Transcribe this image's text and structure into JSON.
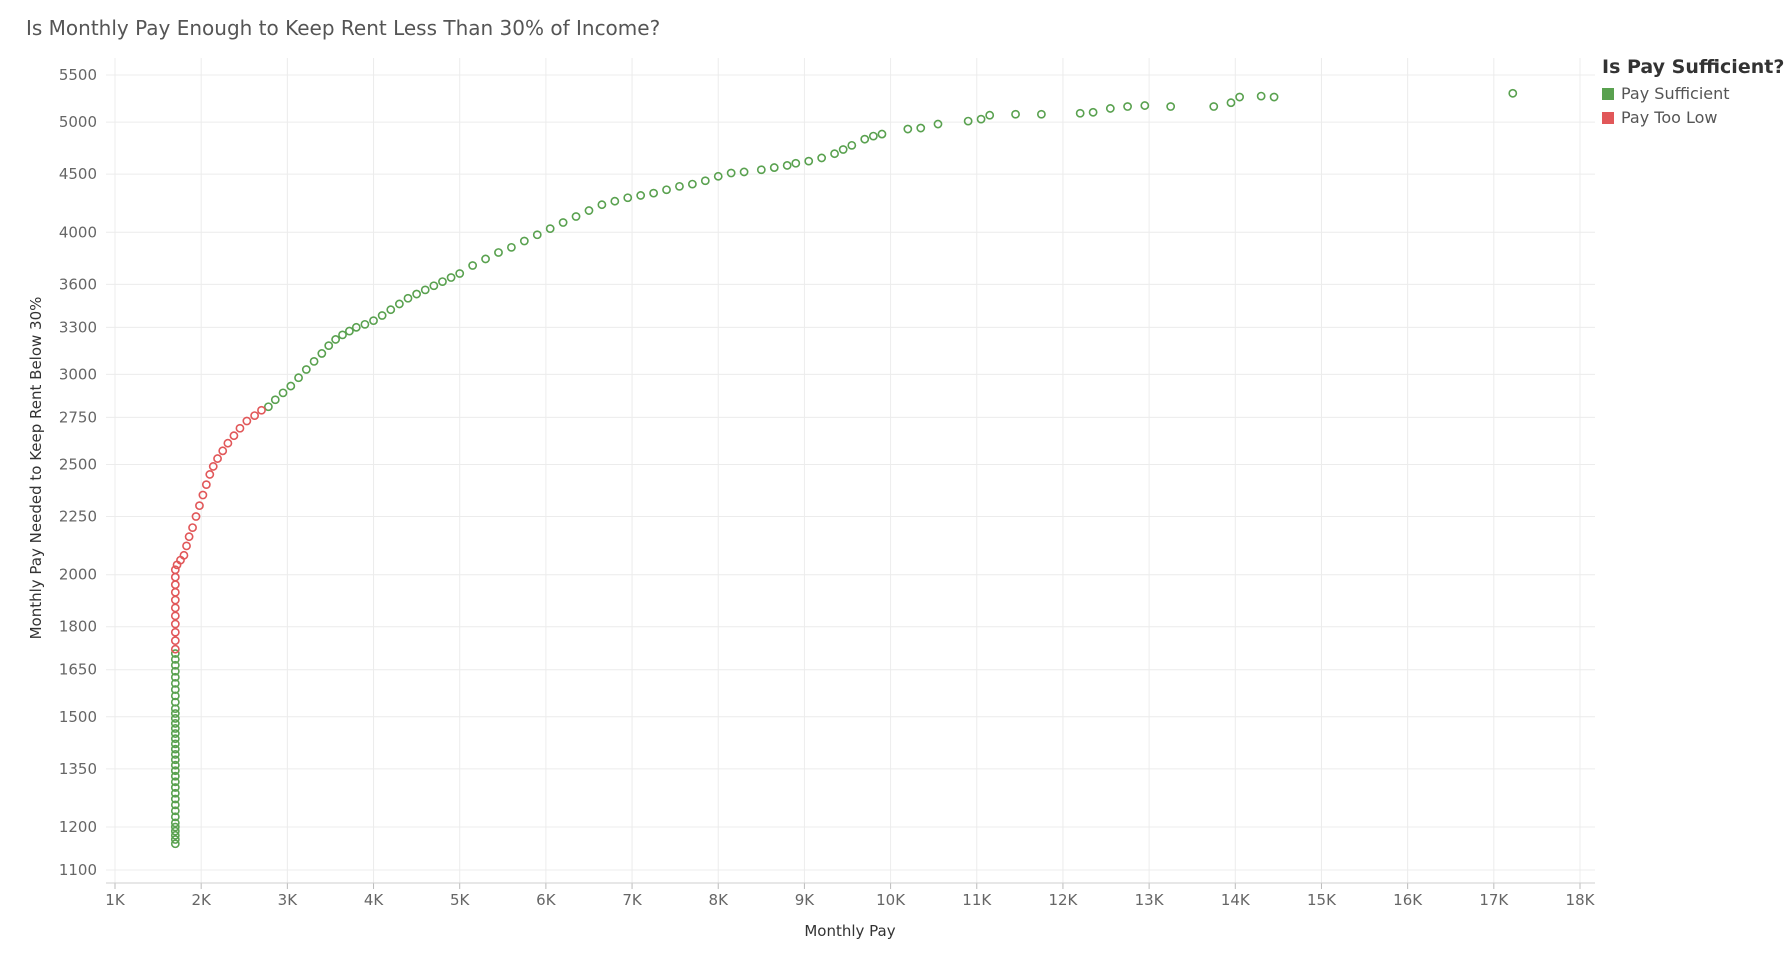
{
  "chart_data": {
    "type": "scatter",
    "title": "Is Monthly Pay Enough to Keep Rent Less Than 30% of Income?",
    "xlabel": "Monthly Pay",
    "ylabel": "Monthly Pay Needed to Keep Rent Below 30%",
    "y_scale": "log",
    "xlim": [
      1000,
      18000
    ],
    "ylim": [
      1100,
      5500
    ],
    "x_ticks": [
      1000,
      2000,
      3000,
      4000,
      5000,
      6000,
      7000,
      8000,
      9000,
      10000,
      11000,
      12000,
      13000,
      14000,
      15000,
      16000,
      17000,
      18000
    ],
    "x_tick_labels": [
      "1K",
      "2K",
      "3K",
      "4K",
      "5K",
      "6K",
      "7K",
      "8K",
      "9K",
      "10K",
      "11K",
      "12K",
      "13K",
      "14K",
      "15K",
      "16K",
      "17K",
      "18K"
    ],
    "y_ticks": [
      1100,
      1200,
      1350,
      1500,
      1650,
      1800,
      2000,
      2250,
      2500,
      2750,
      3000,
      3300,
      3600,
      4000,
      4500,
      5000,
      5500
    ],
    "y_tick_labels": [
      "1100",
      "1200",
      "1350",
      "1500",
      "1650",
      "1800",
      "2000",
      "2250",
      "2500",
      "2750",
      "3000",
      "3300",
      "3600",
      "4000",
      "4500",
      "5000",
      "5500"
    ],
    "grid": true,
    "legend": {
      "title": "Is Pay Sufficient?",
      "position": "top-right",
      "entries": [
        {
          "label": "Pay Sufficient",
          "color": "#59a14f"
        },
        {
          "label": "Pay Too Low",
          "color": "#e15759"
        }
      ]
    },
    "series": [
      {
        "name": "Pay Too Low",
        "color": "#e15759",
        "points": [
          [
            1700,
            1720
          ],
          [
            1700,
            1750
          ],
          [
            1700,
            1780
          ],
          [
            1700,
            1810
          ],
          [
            1700,
            1840
          ],
          [
            1700,
            1870
          ],
          [
            1700,
            1900
          ],
          [
            1700,
            1930
          ],
          [
            1700,
            1960
          ],
          [
            1700,
            1990
          ],
          [
            1700,
            2020
          ],
          [
            1720,
            2040
          ],
          [
            1760,
            2060
          ],
          [
            1800,
            2080
          ],
          [
            1830,
            2120
          ],
          [
            1860,
            2160
          ],
          [
            1900,
            2200
          ],
          [
            1940,
            2250
          ],
          [
            1980,
            2300
          ],
          [
            2020,
            2350
          ],
          [
            2060,
            2400
          ],
          [
            2100,
            2450
          ],
          [
            2140,
            2490
          ],
          [
            2190,
            2530
          ],
          [
            2250,
            2570
          ],
          [
            2310,
            2610
          ],
          [
            2380,
            2650
          ],
          [
            2450,
            2690
          ],
          [
            2530,
            2730
          ],
          [
            2620,
            2760
          ],
          [
            2700,
            2790
          ]
        ]
      },
      {
        "name": "Pay Sufficient",
        "color": "#59a14f",
        "points": [
          [
            1700,
            1160
          ],
          [
            1700,
            1170
          ],
          [
            1700,
            1180
          ],
          [
            1700,
            1190
          ],
          [
            1700,
            1200
          ],
          [
            1700,
            1210
          ],
          [
            1700,
            1225
          ],
          [
            1700,
            1240
          ],
          [
            1700,
            1255
          ],
          [
            1700,
            1270
          ],
          [
            1700,
            1285
          ],
          [
            1700,
            1300
          ],
          [
            1700,
            1315
          ],
          [
            1700,
            1330
          ],
          [
            1700,
            1345
          ],
          [
            1700,
            1360
          ],
          [
            1700,
            1375
          ],
          [
            1700,
            1390
          ],
          [
            1700,
            1405
          ],
          [
            1700,
            1420
          ],
          [
            1700,
            1435
          ],
          [
            1700,
            1450
          ],
          [
            1700,
            1465
          ],
          [
            1700,
            1480
          ],
          [
            1700,
            1495
          ],
          [
            1700,
            1510
          ],
          [
            1700,
            1525
          ],
          [
            1700,
            1545
          ],
          [
            1700,
            1565
          ],
          [
            1700,
            1585
          ],
          [
            1700,
            1605
          ],
          [
            1700,
            1625
          ],
          [
            1700,
            1645
          ],
          [
            1700,
            1665
          ],
          [
            1700,
            1685
          ],
          [
            1700,
            1705
          ],
          [
            2780,
            2810
          ],
          [
            2860,
            2850
          ],
          [
            2950,
            2890
          ],
          [
            3040,
            2930
          ],
          [
            3130,
            2980
          ],
          [
            3220,
            3030
          ],
          [
            3310,
            3080
          ],
          [
            3400,
            3130
          ],
          [
            3480,
            3180
          ],
          [
            3560,
            3220
          ],
          [
            3640,
            3250
          ],
          [
            3720,
            3275
          ],
          [
            3800,
            3300
          ],
          [
            3900,
            3320
          ],
          [
            4000,
            3345
          ],
          [
            4100,
            3380
          ],
          [
            4200,
            3420
          ],
          [
            4300,
            3460
          ],
          [
            4400,
            3500
          ],
          [
            4500,
            3530
          ],
          [
            4600,
            3560
          ],
          [
            4700,
            3590
          ],
          [
            4800,
            3620
          ],
          [
            4900,
            3650
          ],
          [
            5000,
            3680
          ],
          [
            5150,
            3740
          ],
          [
            5300,
            3790
          ],
          [
            5450,
            3840
          ],
          [
            5600,
            3880
          ],
          [
            5750,
            3930
          ],
          [
            5900,
            3980
          ],
          [
            6050,
            4030
          ],
          [
            6200,
            4080
          ],
          [
            6350,
            4130
          ],
          [
            6500,
            4180
          ],
          [
            6650,
            4230
          ],
          [
            6800,
            4260
          ],
          [
            6950,
            4290
          ],
          [
            7100,
            4310
          ],
          [
            7250,
            4330
          ],
          [
            7400,
            4360
          ],
          [
            7550,
            4390
          ],
          [
            7700,
            4410
          ],
          [
            7850,
            4440
          ],
          [
            8000,
            4480
          ],
          [
            8150,
            4510
          ],
          [
            8300,
            4520
          ],
          [
            8500,
            4540
          ],
          [
            8650,
            4560
          ],
          [
            8800,
            4580
          ],
          [
            8900,
            4600
          ],
          [
            9050,
            4620
          ],
          [
            9200,
            4650
          ],
          [
            9350,
            4690
          ],
          [
            9450,
            4730
          ],
          [
            9550,
            4770
          ],
          [
            9700,
            4830
          ],
          [
            9800,
            4860
          ],
          [
            9900,
            4880
          ],
          [
            10200,
            4930
          ],
          [
            10350,
            4940
          ],
          [
            10550,
            4980
          ],
          [
            10900,
            5010
          ],
          [
            11050,
            5030
          ],
          [
            11150,
            5070
          ],
          [
            11450,
            5080
          ],
          [
            11750,
            5080
          ],
          [
            12200,
            5090
          ],
          [
            12350,
            5100
          ],
          [
            12550,
            5140
          ],
          [
            12750,
            5160
          ],
          [
            12950,
            5170
          ],
          [
            13250,
            5160
          ],
          [
            13750,
            5160
          ],
          [
            13950,
            5200
          ],
          [
            14050,
            5260
          ],
          [
            14300,
            5270
          ],
          [
            14450,
            5260
          ],
          [
            17220,
            5300
          ]
        ]
      }
    ]
  }
}
